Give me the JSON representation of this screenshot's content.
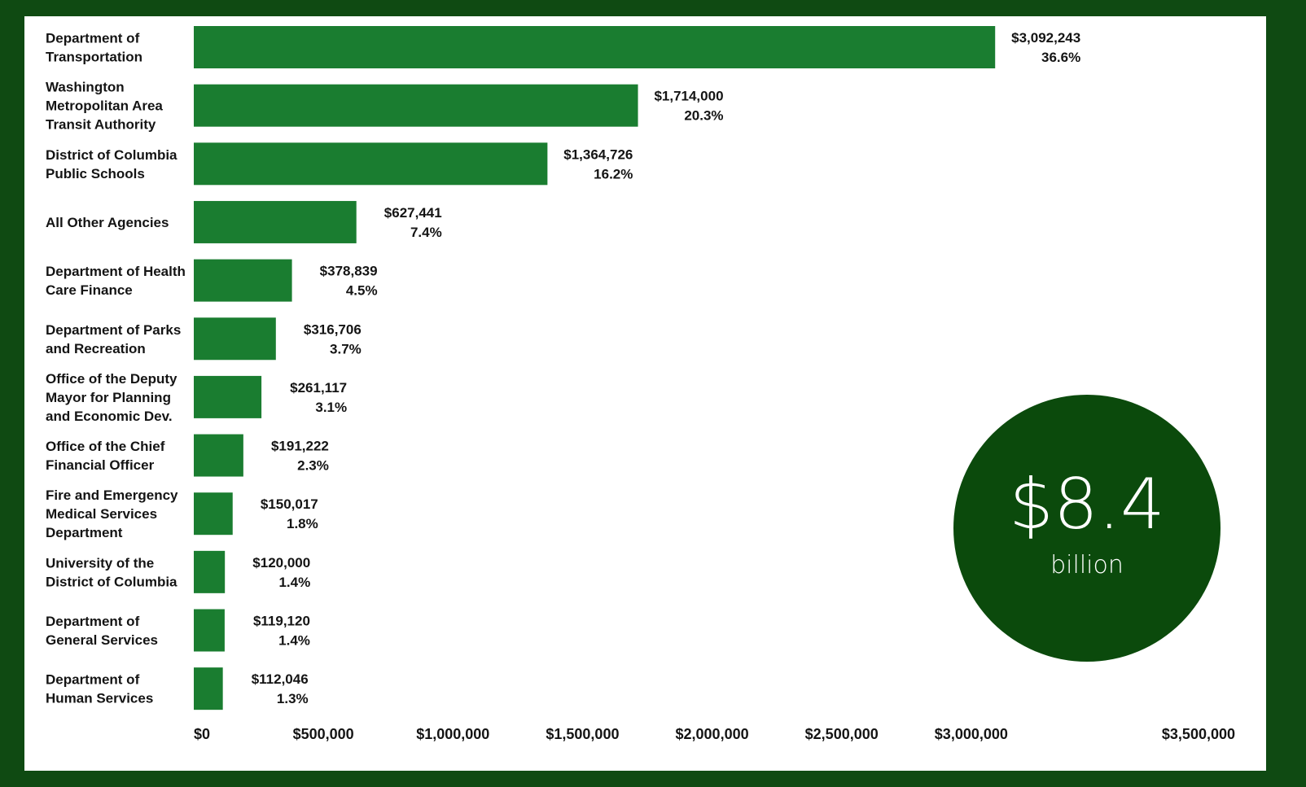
{
  "chart_data": {
    "type": "bar",
    "orientation": "horizontal",
    "categories": [
      [
        "Department of",
        "Transportation"
      ],
      [
        "Washington",
        "Metropolitan Area",
        "Transit Authority"
      ],
      [
        "District of Columbia",
        "Public Schools"
      ],
      [
        "All Other Agencies"
      ],
      [
        "Department of Health",
        "Care Finance"
      ],
      [
        "Department of Parks",
        "and Recreation"
      ],
      [
        "Office of the Deputy",
        "Mayor for Planning",
        "and Economic Dev."
      ],
      [
        "Office of the Chief",
        "Financial Officer"
      ],
      [
        "Fire and Emergency",
        "Medical Services",
        "Department"
      ],
      [
        "University of the",
        "District of Columbia"
      ],
      [
        "Department of",
        "General Services"
      ],
      [
        "Department of",
        "Human Services"
      ]
    ],
    "values": [
      3092243,
      1714000,
      1364726,
      627441,
      378839,
      316706,
      261117,
      191222,
      150017,
      120000,
      119120,
      112046
    ],
    "value_labels": [
      "$3,092,243",
      "$1,714,000",
      "$1,364,726",
      "$627,441",
      "$378,839",
      "$316,706",
      "$261,117",
      "$191,222",
      "$150,017",
      "$120,000",
      "$119,120",
      "$112,046"
    ],
    "percent_labels": [
      "36.6%",
      "20.3%",
      "16.2%",
      "7.4%",
      "4.5%",
      "3.7%",
      "3.1%",
      "2.3%",
      "1.8%",
      "1.4%",
      "1.4%",
      "1.3%"
    ],
    "x_ticks": [
      0,
      500000,
      1000000,
      1500000,
      2000000,
      2500000,
      3000000,
      3500000
    ],
    "x_tick_labels": [
      "$0",
      "$500,000",
      "$1,000,000",
      "$1,500,000",
      "$2,000,000",
      "$2,500,000",
      "$3,000,000",
      "$3,500,000"
    ],
    "xlim": [
      0,
      3500000
    ],
    "grid": false,
    "bar_color": "#1a7d30",
    "title": "",
    "xlabel": "",
    "ylabel": ""
  },
  "total": {
    "amount": "$8.4",
    "unit": "billion"
  },
  "colors": {
    "frame": "#0f4a12",
    "badge": "#0b4a0c",
    "bar": "#1a7d30"
  }
}
